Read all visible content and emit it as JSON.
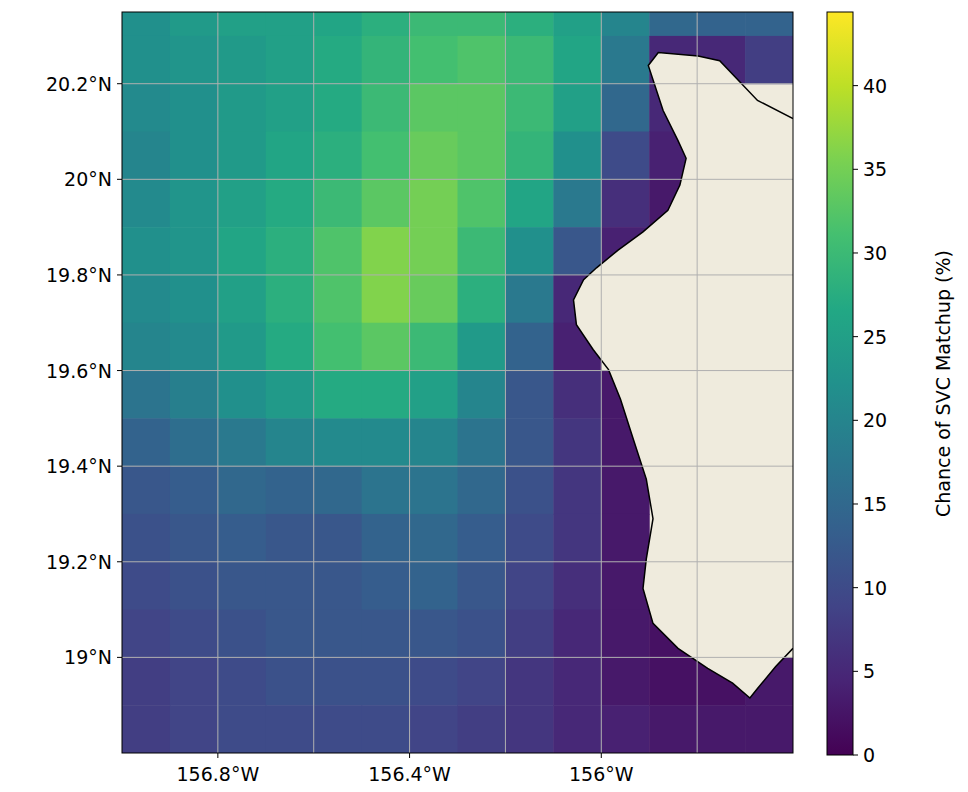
{
  "chart_data": {
    "type": "heatmap",
    "colorbar_label": "Chance of SVC Matchup (%)",
    "color": "viridis",
    "grid": true,
    "xlim": [
      -157.0,
      -155.6
    ],
    "ylim": [
      18.8,
      20.35
    ],
    "xticks": [
      {
        "value": -156.8,
        "label": "156.8°W"
      },
      {
        "value": -156.4,
        "label": "156.4°W"
      },
      {
        "value": -156.0,
        "label": "156°W"
      }
    ],
    "xgrid": [
      -156.6,
      -156.2,
      -155.8
    ],
    "yticks": [
      {
        "value": 19.0,
        "label": "19°N"
      },
      {
        "value": 19.2,
        "label": "19.2°N"
      },
      {
        "value": 19.4,
        "label": "19.4°N"
      },
      {
        "value": 19.6,
        "label": "19.6°N"
      },
      {
        "value": 19.8,
        "label": "19.8°N"
      },
      {
        "value": 20.0,
        "label": "20°N"
      },
      {
        "value": 20.2,
        "label": "20.2°N"
      }
    ],
    "color_range": [
      0,
      44.4
    ],
    "color_ticks": [
      0,
      5,
      10,
      15,
      20,
      25,
      30,
      35,
      40
    ],
    "cells": {
      "lon": [
        -156.95,
        -156.85,
        -156.75,
        -156.65,
        -156.55,
        -156.45,
        -156.35,
        -156.25,
        -156.15,
        -156.05,
        -155.95,
        -155.85,
        -155.75,
        -155.65
      ],
      "lat": [
        20.35,
        20.25,
        20.15,
        20.05,
        19.95,
        19.85,
        19.75,
        19.65,
        19.55,
        19.45,
        19.35,
        19.25,
        19.15,
        19.05,
        18.95,
        18.85
      ],
      "values": [
        [
          22,
          24,
          25,
          25,
          26,
          28,
          30,
          30,
          28,
          25,
          20,
          15,
          14,
          14
        ],
        [
          22,
          23,
          24,
          25,
          27,
          29,
          31,
          32,
          30,
          26,
          18,
          5,
          5,
          8
        ],
        [
          21,
          22,
          24,
          25,
          27,
          30,
          33,
          33,
          30,
          25,
          15,
          5,
          null,
          null
        ],
        [
          20,
          22,
          24,
          26,
          28,
          31,
          34,
          33,
          29,
          22,
          10,
          4,
          null,
          null
        ],
        [
          21,
          23,
          25,
          27,
          30,
          33,
          35,
          32,
          26,
          18,
          6,
          3,
          null,
          null
        ],
        [
          22,
          23,
          26,
          28,
          32,
          36,
          35,
          30,
          22,
          12,
          4,
          null,
          null,
          null
        ],
        [
          21,
          22,
          25,
          28,
          32,
          36,
          34,
          28,
          18,
          5,
          null,
          null,
          null,
          null
        ],
        [
          20,
          21,
          24,
          27,
          31,
          33,
          30,
          24,
          14,
          4,
          null,
          null,
          null,
          null
        ],
        [
          17,
          19,
          22,
          24,
          27,
          27,
          25,
          20,
          12,
          6,
          3,
          null,
          null,
          null
        ],
        [
          14,
          16,
          18,
          20,
          21,
          21,
          20,
          17,
          12,
          7,
          3,
          null,
          null,
          null
        ],
        [
          12,
          13,
          15,
          14,
          15,
          17,
          17,
          15,
          11,
          7,
          3,
          null,
          null,
          null
        ],
        [
          11,
          12,
          13,
          12,
          12,
          14,
          15,
          13,
          10,
          7,
          3,
          null,
          null,
          null
        ],
        [
          10,
          11,
          12,
          12,
          12,
          13,
          14,
          12,
          9,
          6,
          3,
          null,
          null,
          null
        ],
        [
          9,
          10,
          11,
          12,
          12,
          12,
          12,
          11,
          8,
          5,
          3,
          2,
          null,
          null
        ],
        [
          8,
          9,
          10,
          11,
          11,
          11,
          10,
          9,
          7,
          5,
          3,
          2,
          2,
          3
        ],
        [
          8,
          9,
          10,
          10,
          10,
          10,
          9,
          8,
          7,
          5,
          4,
          3,
          3,
          3
        ]
      ]
    },
    "coastline": {
      "lon": [
        -155.6,
        -155.674,
        -155.753,
        -155.798,
        -155.881,
        -155.902,
        -155.871,
        -155.84,
        -155.823,
        -155.836,
        -155.861,
        -155.913,
        -155.965,
        -156.01,
        -156.037,
        -156.058,
        -156.052,
        -156.017,
        -155.985,
        -155.96,
        -155.933,
        -155.906,
        -155.892,
        -155.906,
        -155.913,
        -155.892,
        -155.84,
        -155.778,
        -155.726,
        -155.69,
        -155.674,
        -155.636,
        -155.6
      ],
      "lat": [
        20.127,
        20.165,
        20.248,
        20.258,
        20.265,
        20.238,
        20.144,
        20.081,
        20.044,
        19.988,
        19.935,
        19.89,
        19.852,
        19.815,
        19.79,
        19.748,
        19.696,
        19.644,
        19.602,
        19.54,
        19.456,
        19.373,
        19.29,
        19.206,
        19.144,
        19.071,
        19.019,
        18.977,
        18.946,
        18.915,
        18.935,
        18.981,
        19.019
      ]
    }
  }
}
